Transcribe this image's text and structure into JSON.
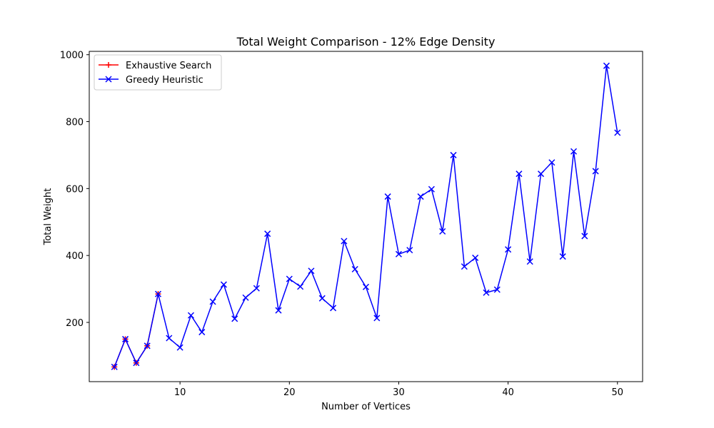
{
  "chart_data": {
    "type": "line",
    "title": "Total Weight Comparison - 12% Edge Density",
    "xlabel": "Number of Vertices",
    "ylabel": "Total Weight",
    "xlim": [
      1.7,
      52.3
    ],
    "ylim": [
      23,
      1010
    ],
    "xticks": [
      10,
      20,
      30,
      40,
      50
    ],
    "yticks": [
      200,
      400,
      600,
      800,
      1000
    ],
    "grid": false,
    "legend_position": "top-left",
    "x": [
      4,
      5,
      6,
      7,
      8,
      9,
      10,
      11,
      12,
      13,
      14,
      15,
      16,
      17,
      18,
      19,
      20,
      21,
      22,
      23,
      24,
      25,
      26,
      27,
      28,
      29,
      30,
      31,
      32,
      33,
      34,
      35,
      36,
      37,
      38,
      39,
      40,
      41,
      42,
      43,
      44,
      45,
      46,
      47,
      48,
      49,
      50
    ],
    "series": [
      {
        "name": "Exhaustive Search",
        "color": "#ff0000",
        "marker": "plus",
        "x": [
          4,
          5,
          6,
          7,
          8
        ],
        "values": [
          67,
          150,
          79,
          130,
          285
        ]
      },
      {
        "name": "Greedy Heuristic",
        "color": "#0000ff",
        "marker": "x",
        "x": [
          4,
          5,
          6,
          7,
          8,
          9,
          10,
          11,
          12,
          13,
          14,
          15,
          16,
          17,
          18,
          19,
          20,
          21,
          22,
          23,
          24,
          25,
          26,
          27,
          28,
          29,
          30,
          31,
          32,
          33,
          34,
          35,
          36,
          37,
          38,
          39,
          40,
          41,
          42,
          43,
          44,
          45,
          46,
          47,
          48,
          49,
          50
        ],
        "values": [
          67,
          150,
          79,
          130,
          285,
          153,
          125,
          221,
          171,
          262,
          313,
          211,
          274,
          302,
          465,
          236,
          330,
          307,
          354,
          272,
          243,
          443,
          359,
          306,
          213,
          576,
          404,
          416,
          576,
          598,
          472,
          700,
          367,
          393,
          289,
          298,
          418,
          644,
          382,
          644,
          678,
          397,
          711,
          458,
          652,
          967,
          767
        ]
      }
    ]
  }
}
